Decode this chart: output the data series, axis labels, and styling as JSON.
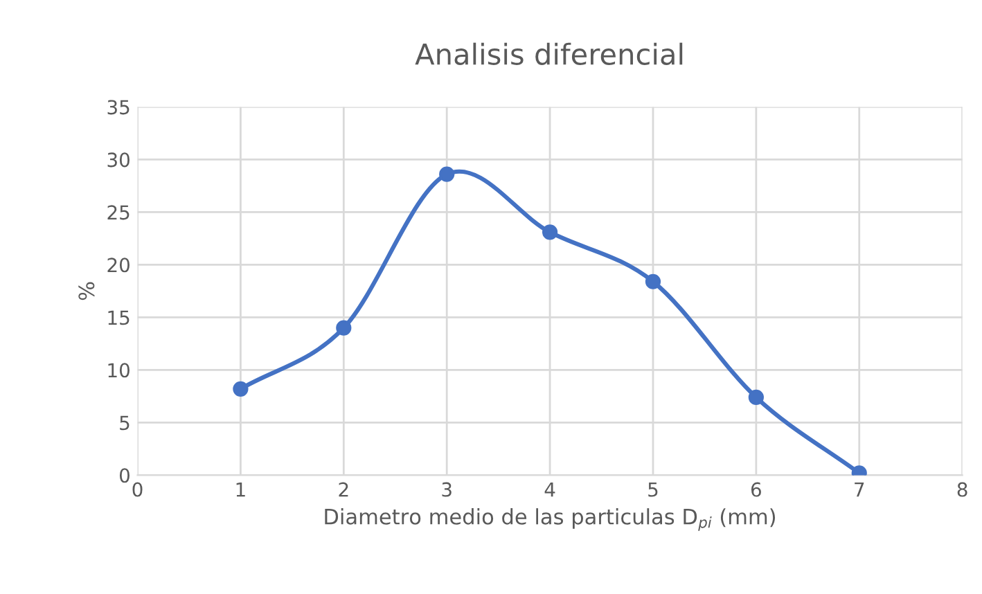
{
  "chart_data": {
    "type": "line",
    "title": "Analisis diferencial",
    "xlabel": "Diametro medio de las particulas D$_{pi}$ (mm)",
    "ylabel": "%",
    "x": [
      1,
      2,
      3,
      4,
      5,
      6,
      7
    ],
    "series": [
      {
        "color": "#4472c4",
        "values": [
          8.2,
          14.0,
          28.6,
          23.1,
          18.4,
          7.4,
          0.2
        ]
      }
    ],
    "xlim": [
      0,
      8
    ],
    "xticks": [
      0,
      1,
      2,
      3,
      4,
      5,
      6,
      7,
      8
    ],
    "ylim": [
      0,
      35
    ],
    "yticks": [
      0,
      5,
      10,
      15,
      20,
      25,
      30,
      35
    ],
    "grid": true,
    "marker": "circle",
    "line_style": "solid",
    "legend": false
  }
}
